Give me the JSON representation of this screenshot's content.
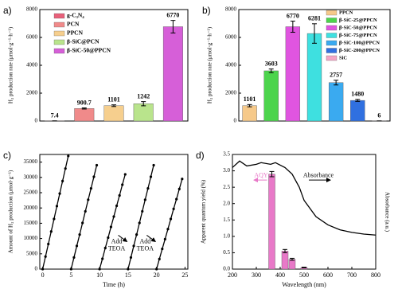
{
  "chart_data": [
    {
      "type": "bar",
      "label": "a)",
      "ylabel": "H₂ production rate (μmol·g⁻¹·h⁻¹)",
      "categories": [
        "g-C₃N₄",
        "PCN",
        "PPCN",
        "β-SiC@PCN",
        "β-SiC-50@PPCN"
      ],
      "values": [
        7.4,
        900.7,
        1101,
        1242,
        6770
      ],
      "errors": [
        5,
        40,
        60,
        150,
        450
      ],
      "colors": [
        "#e8607a",
        "#f08a8a",
        "#f6cf8e",
        "#b9e48c",
        "#d65fd8"
      ],
      "ylim": [
        0,
        8000
      ],
      "yticks": [
        0,
        2000,
        4000,
        6000,
        8000
      ]
    },
    {
      "type": "bar",
      "label": "b)",
      "ylabel": "H₂ production rate (μmol·g⁻¹·h⁻¹)",
      "categories": [
        "PPCN",
        "β-SiC-25@PPCN",
        "β-SiC-50@PPCN",
        "β-SiC-75@PPCN",
        "β-SiC-100@PPCN",
        "β-SiC-200@PPCN",
        "SiC"
      ],
      "values": [
        1101,
        3603,
        6770,
        6281,
        2757,
        1480,
        6
      ],
      "errors": [
        80,
        130,
        400,
        700,
        170,
        70,
        3
      ],
      "colors": [
        "#f6c98a",
        "#4cd44c",
        "#e055e0",
        "#3ee0e0",
        "#3aaaf0",
        "#3070e0",
        "#f4a6c6"
      ],
      "ylim": [
        0,
        8000
      ],
      "yticks": [
        0,
        2000,
        4000,
        6000,
        8000
      ]
    },
    {
      "type": "line",
      "label": "c)",
      "xlabel": "Time (h)",
      "ylabel": "Amount of H₂ production (μmol·g⁻¹)",
      "x": [
        0,
        0.5,
        1,
        1.5,
        2,
        2.5,
        3,
        3.5,
        4,
        4.5,
        null,
        5,
        5.5,
        6,
        6.5,
        7,
        7.5,
        8,
        8.5,
        9,
        9.5,
        null,
        10,
        10.5,
        11,
        11.5,
        12,
        12.5,
        13,
        13.5,
        14,
        14.5,
        null,
        15,
        15.5,
        16,
        16.5,
        17,
        17.5,
        18,
        18.5,
        19,
        19.5,
        null,
        20,
        20.5,
        21,
        21.5,
        22,
        22.5,
        23,
        23.5,
        24,
        24.5
      ],
      "series": [
        {
          "color": "#000000",
          "values": [
            0,
            4100,
            8200,
            12300,
            16400,
            20600,
            24700,
            28800,
            32900,
            37000,
            null,
            0,
            3800,
            7600,
            11300,
            15100,
            18900,
            22700,
            26400,
            30200,
            34000,
            null,
            0,
            3400,
            6900,
            10300,
            13800,
            17200,
            20700,
            24100,
            27600,
            31000,
            null,
            0,
            3800,
            7600,
            11300,
            15100,
            18900,
            22700,
            26400,
            30200,
            34000,
            null,
            0,
            3300,
            6600,
            9800,
            13100,
            16400,
            19700,
            22900,
            26200,
            29500
          ]
        }
      ],
      "annotations": [
        [
          "Add",
          "TEOA"
        ],
        [
          "Add",
          "TEOA"
        ]
      ],
      "xlim": [
        -0.5,
        25.5
      ],
      "xticks": [
        0,
        5,
        10,
        15,
        20,
        25
      ],
      "ylim": [
        0,
        37500
      ],
      "yticks": [
        0,
        5000,
        10000,
        15000,
        20000,
        25000,
        30000,
        35000
      ]
    },
    {
      "type": "combo",
      "label": "d)",
      "xlabel": "Wavelength (nm)",
      "ylabel": "Apparent quantum yield (%)",
      "y2label": "Absorbance (a.u.)",
      "series": [
        {
          "name": "AQY",
          "kind": "bar",
          "color": "#e879c8",
          "x": [
            365,
            420,
            450,
            500
          ],
          "values": [
            2.9,
            0.55,
            0.3,
            0.05
          ],
          "errors": [
            0.08,
            0.05,
            0.03,
            0.01
          ]
        },
        {
          "name": "Absorbance",
          "kind": "line",
          "axis": "y2",
          "color": "#000000",
          "x": [
            200,
            230,
            260,
            300,
            320,
            360,
            380,
            420,
            450,
            480,
            500,
            550,
            600,
            650,
            700,
            750,
            800
          ],
          "values": [
            3.1,
            3.3,
            3.15,
            3.2,
            3.25,
            3.2,
            3.25,
            3.1,
            2.9,
            2.5,
            2.1,
            1.6,
            1.35,
            1.2,
            1.12,
            1.07,
            1.04
          ]
        }
      ],
      "xlim": [
        200,
        800
      ],
      "xticks": [
        200,
        300,
        400,
        500,
        600,
        700,
        800
      ],
      "ylim": [
        0,
        3.5
      ],
      "yticks": [
        {
          "value": 0,
          "label": "0.0"
        },
        0.5,
        {
          "value": 1,
          "label": "1.0"
        },
        1.5,
        {
          "value": 2,
          "label": "2.0"
        },
        2.5,
        {
          "value": 3,
          "label": "3.0"
        },
        3.5
      ],
      "y2lim": [
        0,
        3.5
      ]
    }
  ]
}
